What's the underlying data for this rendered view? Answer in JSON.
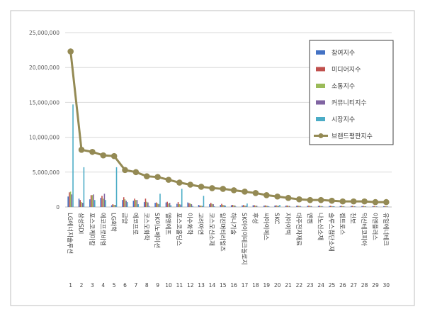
{
  "chart_data": {
    "type": "bar",
    "ylim": [
      0,
      25000000
    ],
    "yticks": [
      0,
      5000000,
      10000000,
      15000000,
      20000000,
      25000000
    ],
    "ytick_labels": [
      "0",
      "5,000,000",
      "10,000,000",
      "15,000,000",
      "20,000,000",
      "25,000,000"
    ],
    "grid": true,
    "legend_position": "top-right",
    "rank_labels": [
      "1",
      "2",
      "3",
      "4",
      "5",
      "6",
      "7",
      "8",
      "9",
      "10",
      "11",
      "12",
      "13",
      "14",
      "15",
      "16",
      "17",
      "18",
      "19",
      "20",
      "21",
      "22",
      "23",
      "24",
      "25",
      "26",
      "27",
      "28",
      "29",
      "30"
    ],
    "categories": [
      "LG에너지솔루션",
      "삼성SDI",
      "포스코케미칼",
      "에코프로비엠",
      "LG화학",
      "금양",
      "에코프로",
      "코스모화학",
      "SK이노베이션",
      "엘앤에프",
      "포스코홀딩스",
      "이수화학",
      "고려아연",
      "코스모신소재",
      "일진머티리얼즈",
      "하나기술",
      "SK아이이테크놀로지",
      "후성",
      "씨아이에스",
      "SKC",
      "지아이텍",
      "대주전자재료",
      "엔켐",
      "나노신소재",
      "솔루스첨단소재",
      "켐트로스",
      "천보",
      "덕산테코피아",
      "이엔플러스",
      "유일에너테크"
    ],
    "series": [
      {
        "name": "참여지수",
        "color": "#4472c4",
        "kind": "bar",
        "values": [
          1500000,
          1200000,
          1100000,
          1300000,
          250000,
          1000000,
          900000,
          700000,
          600000,
          650000,
          450000,
          650000,
          300000,
          400000,
          300000,
          250000,
          230000,
          250000,
          200000,
          200000,
          180000,
          170000,
          160000,
          150000,
          150000,
          140000,
          140000,
          130000,
          120000,
          110000
        ]
      },
      {
        "name": "미디어지수",
        "color": "#c0504d",
        "kind": "bar",
        "values": [
          2100000,
          1000000,
          1700000,
          1600000,
          400000,
          1400000,
          1200000,
          1200000,
          650000,
          750000,
          700000,
          550000,
          200000,
          600000,
          450000,
          300000,
          280000,
          250000,
          230000,
          240000,
          220000,
          200000,
          200000,
          180000,
          170000,
          160000,
          160000,
          150000,
          140000,
          130000
        ]
      },
      {
        "name": "소통지수",
        "color": "#9bbb59",
        "kind": "bar",
        "values": [
          2200000,
          700000,
          1700000,
          1200000,
          300000,
          1100000,
          1000000,
          750000,
          500000,
          500000,
          400000,
          500000,
          200000,
          450000,
          300000,
          250000,
          200000,
          200000,
          180000,
          180000,
          170000,
          160000,
          150000,
          140000,
          130000,
          120000,
          120000,
          110000,
          100000,
          100000
        ]
      },
      {
        "name": "커뮤니티지수",
        "color": "#8064a2",
        "kind": "bar",
        "values": [
          1800000,
          600000,
          1800000,
          1900000,
          300000,
          900000,
          1000000,
          650000,
          400000,
          600000,
          350000,
          400000,
          150000,
          400000,
          250000,
          200000,
          180000,
          180000,
          160000,
          160000,
          150000,
          140000,
          130000,
          120000,
          110000,
          100000,
          100000,
          100000,
          90000,
          90000
        ]
      },
      {
        "name": "시장지수",
        "color": "#4bacc6",
        "kind": "bar",
        "values": [
          14700000,
          5700000,
          1000000,
          1000000,
          5700000,
          700000,
          400000,
          150000,
          1900000,
          250000,
          2600000,
          150000,
          1600000,
          100000,
          200000,
          50000,
          500000,
          30000,
          100000,
          300000,
          30000,
          50000,
          30000,
          50000,
          100000,
          30000,
          50000,
          30000,
          50000,
          20000
        ]
      },
      {
        "name": "브랜드평판지수",
        "color": "#948a54",
        "kind": "line",
        "values": [
          22300000,
          8200000,
          7900000,
          7400000,
          7300000,
          5300000,
          5000000,
          4400000,
          4300000,
          3900000,
          3500000,
          3200000,
          2900000,
          2700000,
          2600000,
          2400000,
          2200000,
          2000000,
          1700000,
          1500000,
          1300000,
          1100000,
          1000000,
          1000000,
          900000,
          800000,
          800000,
          800000,
          700000,
          700000
        ]
      }
    ]
  }
}
